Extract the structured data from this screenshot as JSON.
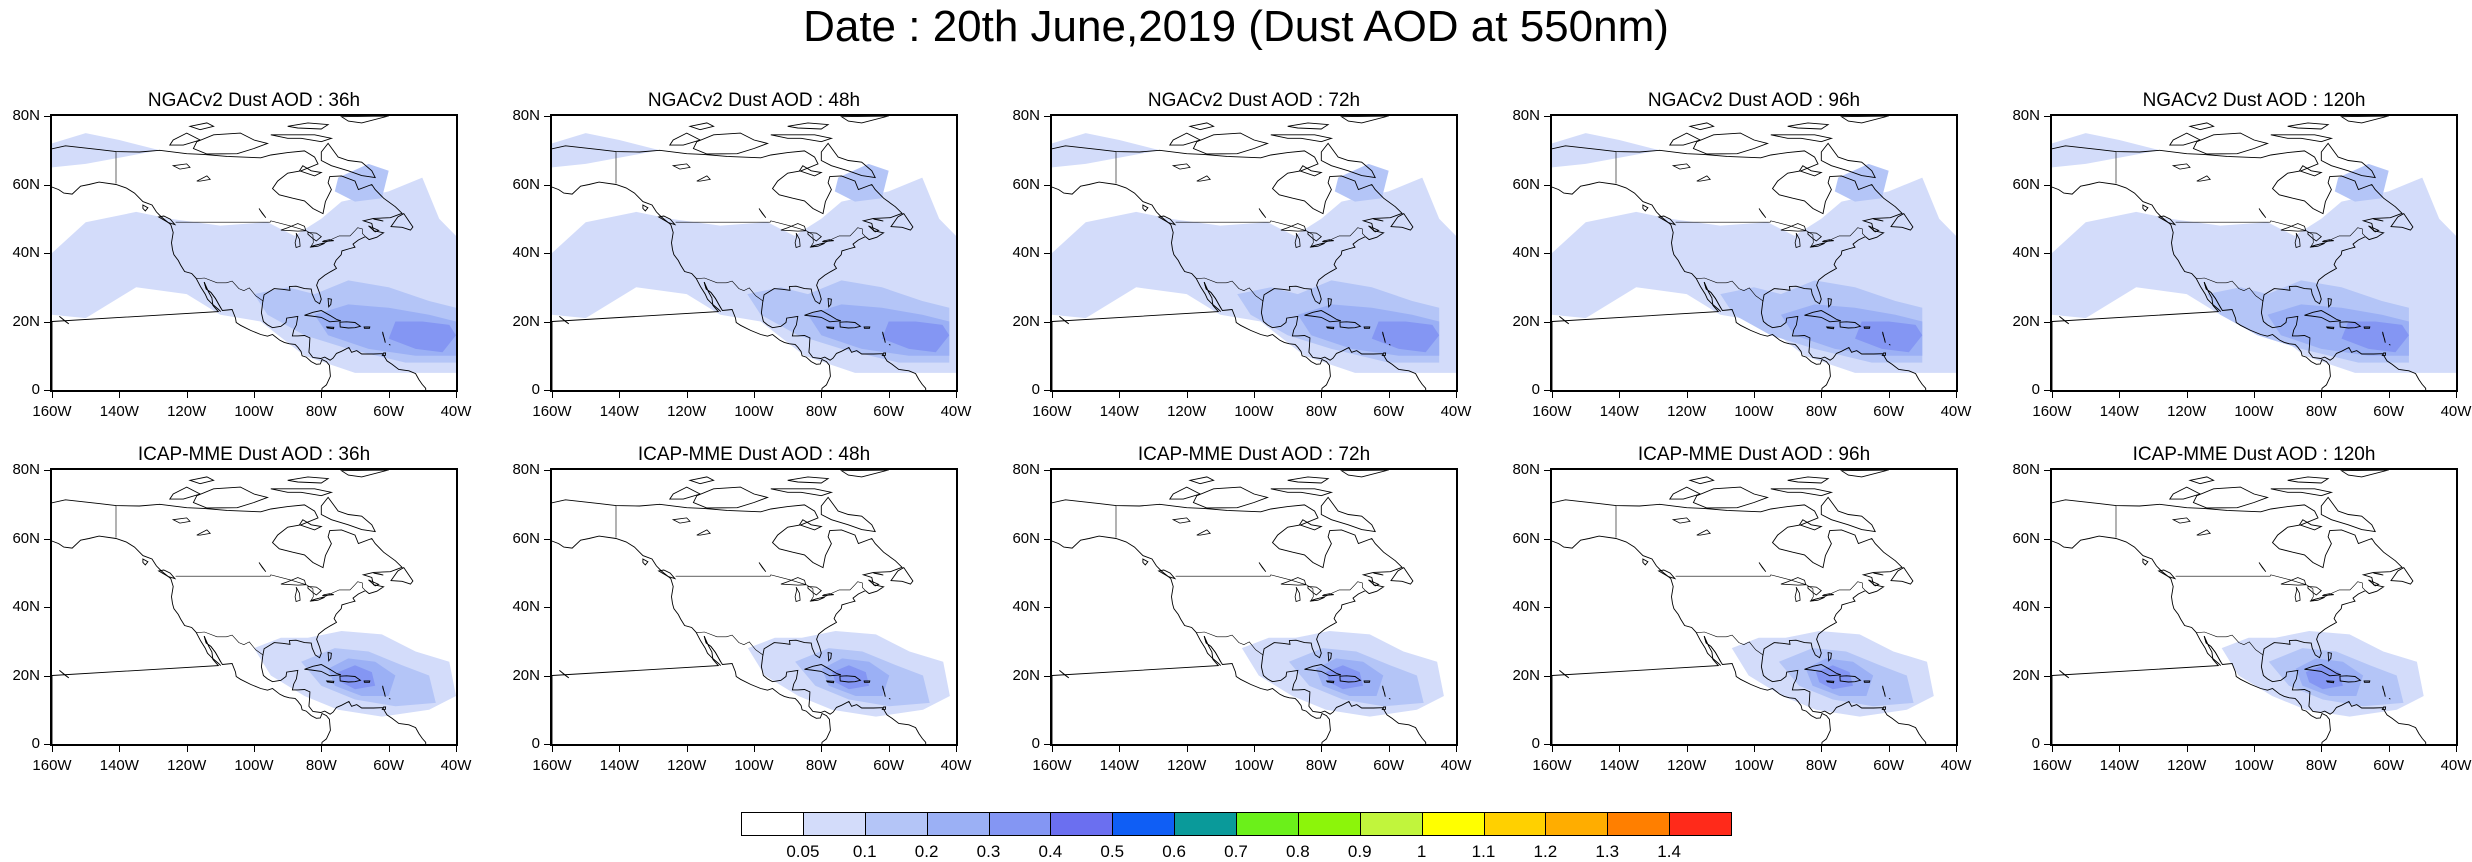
{
  "title": "Date : 20th June,2019 (Dust AOD at 550nm)",
  "panels": [
    {
      "title": "NGACv2 Dust AOD : 36h",
      "model": "ngac",
      "lead": 36
    },
    {
      "title": "NGACv2 Dust AOD : 48h",
      "model": "ngac",
      "lead": 48
    },
    {
      "title": "NGACv2 Dust AOD : 72h",
      "model": "ngac",
      "lead": 72
    },
    {
      "title": "NGACv2 Dust AOD : 96h",
      "model": "ngac",
      "lead": 96
    },
    {
      "title": "NGACv2 Dust AOD : 120h",
      "model": "ngac",
      "lead": 120
    },
    {
      "title": "ICAP-MME Dust AOD : 36h",
      "model": "icap",
      "lead": 36
    },
    {
      "title": "ICAP-MME Dust AOD : 48h",
      "model": "icap",
      "lead": 48
    },
    {
      "title": "ICAP-MME Dust AOD : 72h",
      "model": "icap",
      "lead": 72
    },
    {
      "title": "ICAP-MME Dust AOD : 96h",
      "model": "icap",
      "lead": 96
    },
    {
      "title": "ICAP-MME Dust AOD : 120h",
      "model": "icap",
      "lead": 120
    }
  ],
  "axes": {
    "lon_ticks": [
      "160W",
      "140W",
      "120W",
      "100W",
      "80W",
      "60W",
      "40W"
    ],
    "lat_ticks": [
      "80N",
      "60N",
      "40N",
      "20N",
      "0"
    ],
    "lon_range": [
      -160,
      -40
    ],
    "lat_range": [
      0,
      80
    ]
  },
  "colorbar": {
    "colors": [
      "#ffffff",
      "#d3dcfa",
      "#b4c5f7",
      "#9bb0f5",
      "#8496f3",
      "#6b6ff0",
      "#0f5ef5",
      "#0a9a9a",
      "#6bf01a",
      "#8cf50a",
      "#c1f53c",
      "#ffff00",
      "#ffd000",
      "#ffad00",
      "#ff7f00",
      "#ff2a1a"
    ],
    "labels": [
      "0.05",
      "0.1",
      "0.2",
      "0.3",
      "0.4",
      "0.5",
      "0.6",
      "0.7",
      "0.8",
      "0.9",
      "1",
      "1.1",
      "1.2",
      "1.3",
      "1.4"
    ]
  },
  "colors": {
    "level1": "#d3dcfa",
    "level2": "#b4c5f7",
    "level3": "#9bb0f5",
    "level4": "#8496f3",
    "level5": "#6b6ff0"
  }
}
